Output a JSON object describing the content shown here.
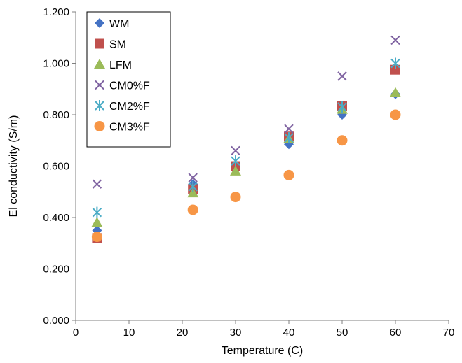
{
  "chart_data": {
    "type": "scatter",
    "title": "",
    "xlabel": "Temperature (C)",
    "ylabel": "El conductivity (S/m)",
    "xlim": [
      0,
      70
    ],
    "ylim": [
      0,
      1.2
    ],
    "x_ticks": [
      "0",
      "10",
      "20",
      "30",
      "40",
      "50",
      "60",
      "70"
    ],
    "y_ticks": [
      "0.000",
      "0.200",
      "0.400",
      "0.600",
      "0.800",
      "1.000",
      "1.200"
    ],
    "grid": false,
    "legend_position": "top-left",
    "series": [
      {
        "name": "WM",
        "marker": "diamond",
        "color": "#4472C4",
        "x": [
          4,
          22,
          30,
          40,
          50,
          60
        ],
        "y": [
          0.35,
          0.53,
          0.59,
          0.685,
          0.8,
          0.88
        ]
      },
      {
        "name": "SM",
        "marker": "square",
        "color": "#C0504D",
        "x": [
          4,
          22,
          30,
          40,
          50,
          60
        ],
        "y": [
          0.32,
          0.51,
          0.6,
          0.715,
          0.835,
          0.975
        ]
      },
      {
        "name": "LFM",
        "marker": "triangle",
        "color": "#9BBB59",
        "x": [
          4,
          22,
          30,
          40,
          50,
          60
        ],
        "y": [
          0.38,
          0.495,
          0.58,
          0.705,
          0.82,
          0.885
        ]
      },
      {
        "name": "CM0%F",
        "marker": "x",
        "color": "#8064A2",
        "x": [
          4,
          22,
          30,
          40,
          50,
          60
        ],
        "y": [
          0.53,
          0.555,
          0.66,
          0.745,
          0.95,
          1.09
        ]
      },
      {
        "name": "CM2%F",
        "marker": "asterisk",
        "color": "#4BACC6",
        "x": [
          4,
          22,
          30,
          40,
          50,
          60
        ],
        "y": [
          0.42,
          0.52,
          0.62,
          0.71,
          0.83,
          1.0
        ]
      },
      {
        "name": "CM3%F",
        "marker": "circle",
        "color": "#F79646",
        "x": [
          4,
          22,
          30,
          40,
          50,
          60
        ],
        "y": [
          0.325,
          0.43,
          0.48,
          0.565,
          0.7,
          0.8
        ]
      }
    ]
  }
}
